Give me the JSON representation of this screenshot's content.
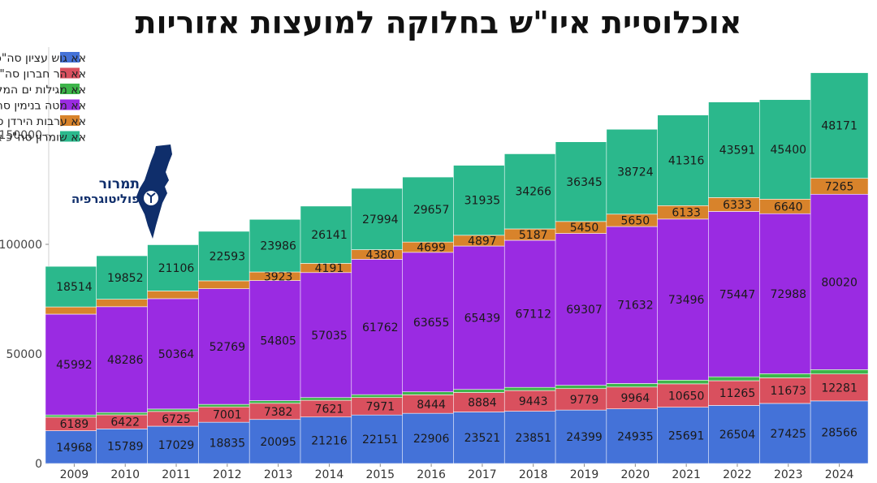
{
  "title": "אוכלוסיית איו\"ש בחלוקה למועצות אזוריות",
  "logo": {
    "line1": "תמרור",
    "line2": "פוליטוגרפיה",
    "icon": "israel-map-road-sign-icon",
    "color": "#0f2e6b"
  },
  "chart_data": {
    "type": "bar",
    "stacked": true,
    "categories": [
      "2009",
      "2010",
      "2011",
      "2012",
      "2013",
      "2014",
      "2015",
      "2016",
      "2017",
      "2018",
      "2019",
      "2020",
      "2021",
      "2022",
      "2023",
      "2024"
    ],
    "ylim": [
      0,
      190000
    ],
    "yticks": [
      0,
      50000,
      100000,
      150000
    ],
    "ytick_labels": [
      "0",
      "50000",
      "100000",
      "150000"
    ],
    "grid": false,
    "legend_position": "top-left",
    "series": [
      {
        "name": "אא גוש עציון סה\"כ אוכלוסייה",
        "color": "#4472d8",
        "values": [
          14968,
          15789,
          17029,
          18835,
          20095,
          21216,
          22151,
          22906,
          23521,
          23851,
          24399,
          24935,
          25691,
          26504,
          27425,
          28566
        ],
        "labels": [
          "14968",
          "15789",
          "17029",
          "18835",
          "20095",
          "21216",
          "22151",
          "22906",
          "23521",
          "23851",
          "24399",
          "24935",
          "25691",
          "26504",
          "27425",
          "28566"
        ]
      },
      {
        "name": "אא הר חברון סה\"כ אוכלוסייה",
        "color": "#d9505e",
        "values": [
          6189,
          6422,
          6725,
          7001,
          7382,
          7621,
          7971,
          8444,
          8884,
          9443,
          9779,
          9964,
          10650,
          11265,
          11673,
          12281
        ],
        "labels": [
          "6189",
          "6422",
          "6725",
          "7001",
          "7382",
          "7621",
          "7971",
          "8444",
          "8884",
          "9443",
          "9779",
          "9964",
          "10650",
          "11265",
          "11673",
          "12281"
        ]
      },
      {
        "name": "אא מגילות ים המלח סה\"כ אוכלוסייה",
        "color": "#3db54a",
        "values": [
          1000,
          1050,
          1100,
          1150,
          1200,
          1250,
          1300,
          1350,
          1400,
          1450,
          1500,
          1600,
          1700,
          1800,
          1900,
          2000
        ],
        "labels": [
          "",
          "",
          "",
          "",
          "",
          "",
          "",
          "",
          "",
          "",
          "",
          "",
          "",
          "",
          "",
          ""
        ]
      },
      {
        "name": "אא מטה בנימין סה\"כ אוכלוסייה",
        "color": "#9a2be2",
        "values": [
          45992,
          48286,
          50364,
          52769,
          54805,
          57035,
          61762,
          63655,
          65439,
          67112,
          69307,
          71632,
          73496,
          75447,
          72988,
          80020
        ],
        "labels": [
          "45992",
          "48286",
          "50364",
          "52769",
          "54805",
          "57035",
          "61762",
          "63655",
          "65439",
          "67112",
          "69307",
          "71632",
          "73496",
          "75447",
          "72988",
          "80020"
        ]
      },
      {
        "name": "אא ערבות הירדן סה\"כ אוכלוסייה",
        "color": "#d8832b",
        "values": [
          3300,
          3400,
          3500,
          3600,
          3923,
          4191,
          4380,
          4699,
          4897,
          5187,
          5450,
          5650,
          6133,
          6333,
          6640,
          7265
        ],
        "labels": [
          "",
          "",
          "",
          "",
          "3923",
          "4191",
          "4380",
          "4699",
          "4897",
          "5187",
          "5450",
          "5650",
          "6133",
          "6333",
          "6640",
          "7265"
        ]
      },
      {
        "name": "אא שומרון סה\"כ אוכלוסייה",
        "color": "#2bb88c",
        "values": [
          18514,
          19852,
          21106,
          22593,
          23986,
          26141,
          27994,
          29657,
          31935,
          34266,
          36345,
          38724,
          41316,
          43591,
          45400,
          48171
        ],
        "labels": [
          "18514",
          "19852",
          "21106",
          "22593",
          "23986",
          "26141",
          "27994",
          "29657",
          "31935",
          "34266",
          "36345",
          "38724",
          "41316",
          "43591",
          "45400",
          "48171"
        ]
      }
    ]
  }
}
